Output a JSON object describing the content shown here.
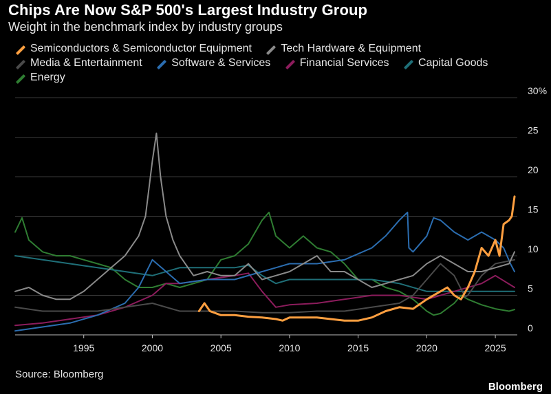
{
  "header": {
    "title": "Chips Are Now S&P 500's Largest Industry Group",
    "subtitle": "Weight in the benchmark index by industry groups"
  },
  "footer": {
    "source": "Source: Bloomberg",
    "brand": "Bloomberg"
  },
  "chart_data": {
    "type": "line",
    "title": "Chips Are Now S&P 500's Largest Industry Group",
    "subtitle": "Weight in the benchmark index by industry groups",
    "xlabel": "",
    "ylabel": "",
    "xlim": [
      1990,
      2026.6
    ],
    "ylim": [
      0,
      30
    ],
    "x_ticks": [
      1995,
      2000,
      2005,
      2010,
      2015,
      2020,
      2025
    ],
    "y_ticks": [
      0,
      5,
      10,
      15,
      20,
      25,
      30
    ],
    "y_tick_labels": [
      "0",
      "5",
      "10",
      "15",
      "20",
      "25",
      "30%"
    ],
    "grid": "horizontal",
    "legend_position": "top",
    "series": [
      {
        "name": "Energy",
        "color": "#2f7d32",
        "x": [
          1990,
          1990.5,
          1991,
          1992,
          1993,
          1994,
          1995,
          1996,
          1997,
          1998,
          1999,
          2000,
          2001,
          2002,
          2003,
          2004,
          2005,
          2006,
          2007,
          2008,
          2008.5,
          2009,
          2010,
          2011,
          2012,
          2013,
          2014,
          2015,
          2016,
          2017,
          2018,
          2019,
          2020,
          2020.5,
          2021,
          2022,
          2022.5,
          2023,
          2024,
          2025,
          2026,
          2026.4
        ],
        "y": [
          13,
          14.8,
          12,
          10.5,
          10,
          10,
          9.5,
          9,
          8.5,
          7,
          6,
          6,
          6.5,
          6,
          6.5,
          7,
          9.5,
          10,
          11.5,
          14.5,
          15.5,
          12.5,
          11,
          12.5,
          11,
          10.5,
          9,
          7,
          7,
          6,
          5.5,
          4.5,
          3,
          2.5,
          2.7,
          4,
          5,
          4.5,
          3.8,
          3.3,
          3,
          3.2
        ]
      },
      {
        "name": "Capital Goods",
        "color": "#1f6f78",
        "x": [
          1990,
          1992,
          1994,
          1996,
          1998,
          2000,
          2002,
          2004,
          2006,
          2007,
          2008,
          2009,
          2010,
          2012,
          2014,
          2016,
          2018,
          2020,
          2022,
          2024,
          2026.4
        ],
        "y": [
          10,
          9.5,
          9,
          8.5,
          8,
          7.5,
          8.5,
          8.5,
          8.5,
          8.8,
          7.5,
          6.5,
          7,
          7,
          7,
          7,
          6.5,
          5.5,
          5.5,
          5.5,
          5.5
        ]
      },
      {
        "name": "Financial Services",
        "color": "#8c1c5c",
        "x": [
          1990,
          1992,
          1994,
          1996,
          1998,
          2000,
          2001,
          2002,
          2004,
          2006,
          2007,
          2008,
          2009,
          2010,
          2012,
          2014,
          2016,
          2018,
          2020,
          2022,
          2024,
          2025,
          2026.4
        ],
        "y": [
          1.2,
          1.5,
          2,
          2.5,
          3.5,
          5,
          6.5,
          6.5,
          7,
          7.5,
          7.8,
          5.5,
          3.5,
          3.8,
          4,
          4.5,
          5,
          5,
          4.5,
          5.5,
          6.5,
          7.5,
          6
        ]
      },
      {
        "name": "Software & Services",
        "color": "#2b6db0",
        "x": [
          1990,
          1992,
          1994,
          1996,
          1998,
          1999,
          2000,
          2001,
          2002,
          2004,
          2006,
          2008,
          2009,
          2010,
          2012,
          2014,
          2016,
          2017,
          2018,
          2018.6,
          2018.7,
          2019,
          2020,
          2020.5,
          2021,
          2022,
          2023,
          2024,
          2025,
          2025.6,
          2026.1,
          2026.4
        ],
        "y": [
          0.5,
          1,
          1.5,
          2.5,
          4,
          6,
          9.5,
          8,
          6.5,
          7,
          7,
          8,
          8.5,
          9,
          9,
          9.5,
          11,
          12.5,
          14.5,
          15.5,
          11,
          10.5,
          12.5,
          14.8,
          14.5,
          13,
          12,
          13,
          12,
          11,
          9,
          8
        ]
      },
      {
        "name": "Media & Entertainment",
        "color": "#4a4a4a",
        "x": [
          1990,
          1992,
          1994,
          1996,
          1998,
          2000,
          2002,
          2004,
          2006,
          2008,
          2010,
          2012,
          2014,
          2016,
          2018,
          2019,
          2020,
          2021,
          2022,
          2022.8,
          2023,
          2024,
          2025,
          2026.4
        ],
        "y": [
          3.5,
          3,
          3,
          3,
          3.5,
          4,
          3,
          3,
          3,
          2.8,
          2.8,
          3,
          3,
          3.5,
          4,
          5,
          7,
          9,
          7.5,
          4.8,
          5,
          7.5,
          9,
          9.5
        ]
      },
      {
        "name": "Tech Hardware & Equipment",
        "color": "#8a8a8a",
        "x": [
          1990,
          1991,
          1992,
          1993,
          1994,
          1995,
          1996,
          1997,
          1998,
          1999,
          1999.5,
          2000,
          2000.3,
          2000.6,
          2001,
          2001.5,
          2002,
          2003,
          2004,
          2005,
          2006,
          2007,
          2008,
          2009,
          2010,
          2011,
          2012,
          2013,
          2014,
          2015,
          2016,
          2017,
          2018,
          2019,
          2020,
          2021,
          2022,
          2023,
          2024,
          2025,
          2026,
          2026.4
        ],
        "y": [
          5.5,
          6,
          5,
          4.5,
          4.5,
          5.5,
          7,
          8.5,
          10,
          12.5,
          15,
          22,
          25.5,
          20,
          15,
          12,
          10,
          7.5,
          8,
          7.5,
          7.5,
          9,
          7,
          7.5,
          8,
          9,
          10,
          8,
          8,
          7,
          6,
          6.5,
          7,
          7.5,
          9,
          10,
          9,
          8,
          8,
          8.5,
          9,
          10.5
        ]
      },
      {
        "name": "Semiconductors & Semiconductor Equipment",
        "color": "#ff9f40",
        "x": [
          2003.4,
          2003.8,
          2004.2,
          2005,
          2006,
          2007,
          2008,
          2009,
          2009.5,
          2010,
          2011,
          2012,
          2013,
          2014,
          2015,
          2016,
          2017,
          2018,
          2019,
          2020,
          2021,
          2021.5,
          2022,
          2022.5,
          2023,
          2023.5,
          2024,
          2024.5,
          2025,
          2025.3,
          2025.6,
          2026,
          2026.2,
          2026.4
        ],
        "y": [
          3,
          4,
          3,
          2.5,
          2.5,
          2.3,
          2.2,
          2,
          1.8,
          2.2,
          2.2,
          2.2,
          2,
          1.8,
          1.8,
          2.2,
          3,
          3.5,
          3.3,
          4.5,
          5.5,
          6,
          5,
          4.5,
          6,
          8,
          11,
          10,
          12,
          10,
          14,
          14.5,
          15,
          17.5
        ]
      }
    ]
  }
}
